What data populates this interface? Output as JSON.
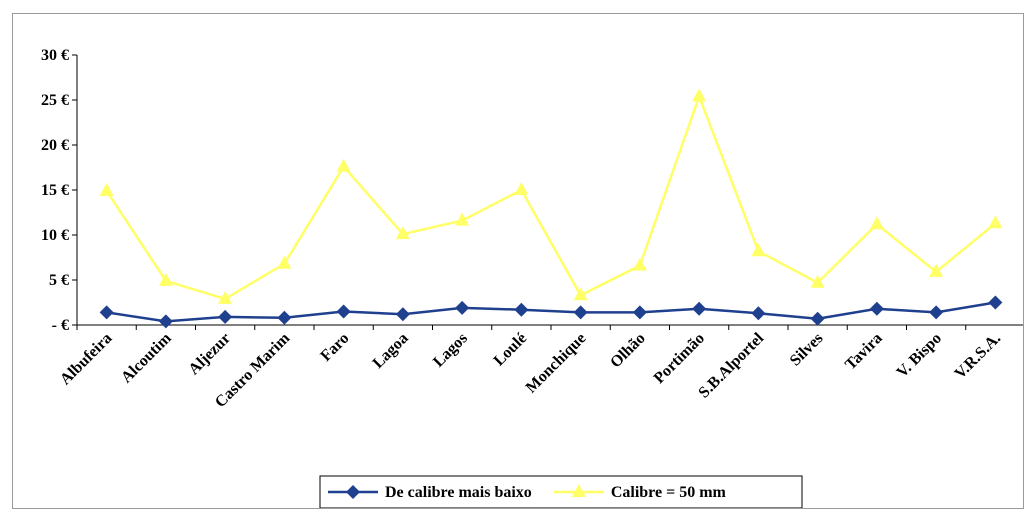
{
  "chart_data": {
    "type": "line",
    "categories": [
      "Albufeira",
      "Alcoutim",
      "Aljezur",
      "Castro Marim",
      "Faro",
      "Lagoa",
      "Lagos",
      "Loulé",
      "Monchique",
      "Olhão",
      "Portimão",
      "S.B.Alportel",
      "Silves",
      "Tavira",
      "V. Bispo",
      "V.R.S.A."
    ],
    "series": [
      {
        "name": "De calibre mais baixo",
        "color": "#1f3f8f",
        "marker": "diamond",
        "values": [
          1.4,
          0.4,
          0.9,
          0.8,
          1.5,
          1.2,
          1.9,
          1.7,
          1.4,
          1.4,
          1.8,
          1.3,
          0.7,
          1.8,
          1.4,
          2.5
        ]
      },
      {
        "name": "Calibre = 50 mm",
        "color": "#ffff66",
        "marker": "triangle",
        "values": [
          14.9,
          4.9,
          2.9,
          6.8,
          17.6,
          10.1,
          11.6,
          15.0,
          3.3,
          6.6,
          25.4,
          8.2,
          4.7,
          11.2,
          5.9,
          11.3
        ]
      }
    ],
    "y_ticks": [
      "- €",
      "5 €",
      "10 €",
      "15 €",
      "20 €",
      "25 €",
      "30 €"
    ],
    "ylim": [
      0,
      30
    ],
    "grid": false,
    "legend_position": "bottom"
  }
}
